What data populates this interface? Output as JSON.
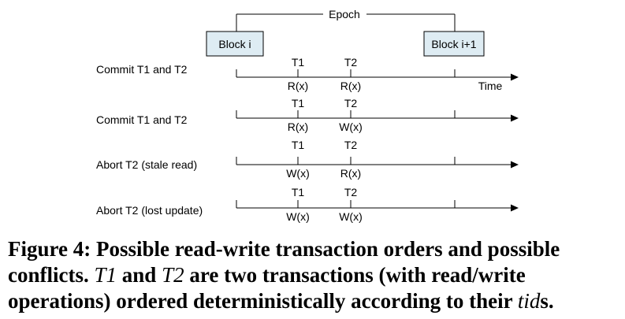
{
  "epoch_label": "Epoch",
  "blocks": [
    "Block i",
    "Block i+1"
  ],
  "time_label": "Time",
  "rows": [
    {
      "label": "Commit T1 and T2",
      "t1": "T1",
      "t2": "T2",
      "op1": "R(x)",
      "op2": "R(x)"
    },
    {
      "label": "Commit T1 and T2",
      "t1": "T1",
      "t2": "T2",
      "op1": "R(x)",
      "op2": "W(x)"
    },
    {
      "label": "Abort T2 (stale read)",
      "t1": "T1",
      "t2": "T2",
      "op1": "W(x)",
      "op2": "R(x)"
    },
    {
      "label": "Abort T2 (lost update)",
      "t1": "T1",
      "t2": "T2",
      "op1": "W(x)",
      "op2": "W(x)"
    }
  ],
  "caption": {
    "bold": "Figure 4: Possible read-write transaction orders and possible conflicts.",
    "part1": " ",
    "t1": "T1",
    "part2": " and ",
    "t2": "T2",
    "part3": " are two transactions (with read/write operations) ordered deterministically according to their ",
    "tid": "tid",
    "part4": "s."
  },
  "colors": {
    "block_fill": "#deecf3",
    "line": "#000000"
  }
}
